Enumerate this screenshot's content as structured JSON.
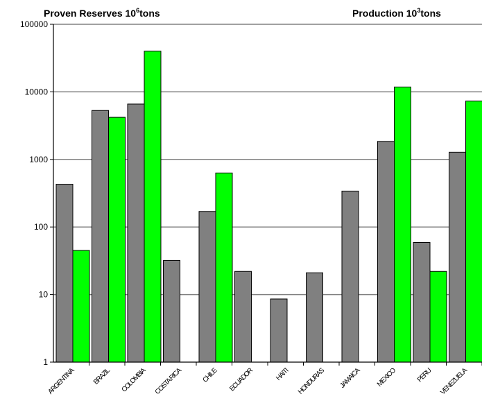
{
  "chart_data": {
    "type": "bar",
    "title_left": {
      "text": "Proven Reserves 10",
      "superscript": "6",
      "suffix": "tons"
    },
    "title_right": {
      "text": "Production 10",
      "superscript": "3",
      "suffix": "tons"
    },
    "y_scale": "log",
    "ylim": [
      1,
      100000
    ],
    "y_ticks": [
      1,
      10,
      100,
      1000,
      10000,
      100000
    ],
    "y_tick_labels": [
      "1",
      "10",
      "100",
      "1000",
      "10000",
      "100000"
    ],
    "grid": true,
    "categories": [
      "ARGENTINA",
      "BRAZIL",
      "COLOMBIA",
      "COSTA RICA",
      "CHILE",
      "ECUADOR",
      "HAITI",
      "HONDURAS",
      "JAMAICA",
      "MEXICO",
      "PERU",
      "VENEZUELA"
    ],
    "series": [
      {
        "key": "reserves",
        "color": "#808080",
        "values": [
          430,
          5300,
          6600,
          32,
          170,
          22,
          8.6,
          21,
          340,
          1850,
          59,
          1280
        ]
      },
      {
        "key": "production",
        "color": "#00ff00",
        "values": [
          45,
          4200,
          40000,
          null,
          630,
          null,
          null,
          null,
          null,
          11800,
          22,
          7300
        ]
      }
    ]
  }
}
